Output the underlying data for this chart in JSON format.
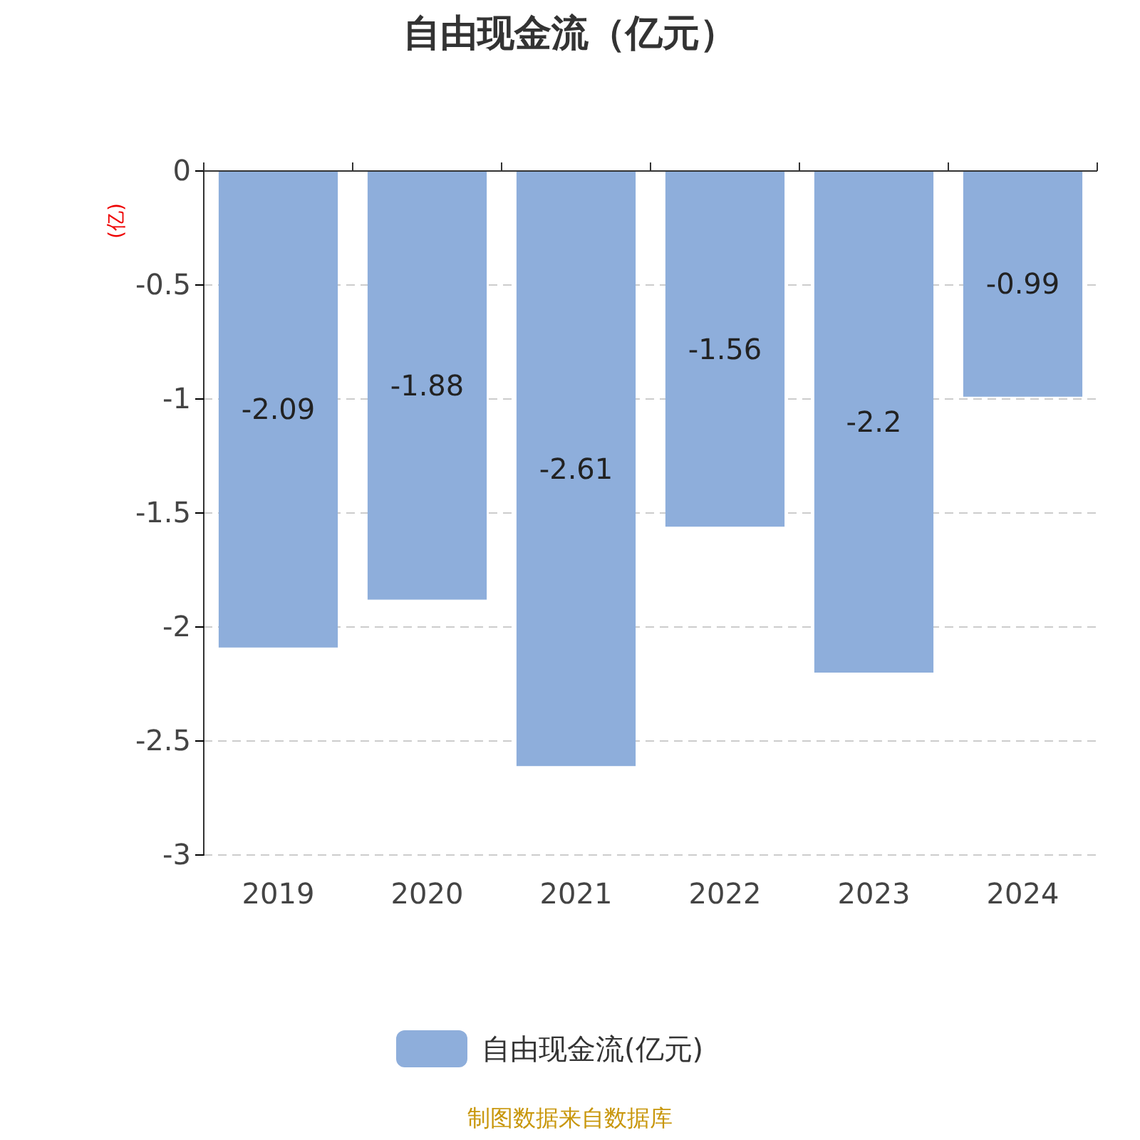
{
  "chart_data": {
    "type": "bar",
    "title": "自由现金流（亿元）",
    "ylabel": "(亿)",
    "categories": [
      "2019",
      "2020",
      "2021",
      "2022",
      "2023",
      "2024"
    ],
    "series": [
      {
        "name": "自由现金流(亿元)",
        "color": "#8eaedb",
        "values": [
          -2.09,
          -1.88,
          -2.61,
          -1.56,
          -2.2,
          -0.99
        ]
      }
    ],
    "ylim": [
      -3,
      0
    ],
    "yticks": [
      0,
      -0.5,
      -1,
      -1.5,
      -2,
      -2.5,
      -3
    ],
    "grid": "y",
    "legend": "bottom",
    "data_labels": true,
    "annotations": [
      "制图数据来自数据库"
    ]
  }
}
